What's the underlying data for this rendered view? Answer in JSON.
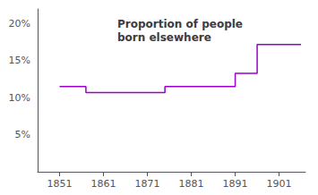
{
  "chart_data": {
    "type": "line",
    "title": "Proportion of people\nborn elsewhere",
    "x": [
      1851,
      1857,
      1857,
      1865,
      1865,
      1875,
      1875,
      1884,
      1884,
      1891,
      1891,
      1896,
      1896,
      1906
    ],
    "values": [
      0.115,
      0.115,
      0.107,
      0.107,
      0.107,
      0.107,
      0.115,
      0.115,
      0.115,
      0.115,
      0.133,
      0.133,
      0.172,
      0.172
    ],
    "color": "#9900cc",
    "xlim": [
      1846,
      1907
    ],
    "xticks": [
      1851,
      1861,
      1871,
      1881,
      1891,
      1901
    ],
    "ylim": [
      0.0,
      0.22
    ],
    "yticks": [
      {
        "value": 0.05,
        "label": "5%"
      },
      {
        "value": 0.1,
        "label": "10%"
      },
      {
        "value": 0.15,
        "label": "15%"
      },
      {
        "value": 0.2,
        "label": "20%"
      }
    ],
    "grid": false
  }
}
